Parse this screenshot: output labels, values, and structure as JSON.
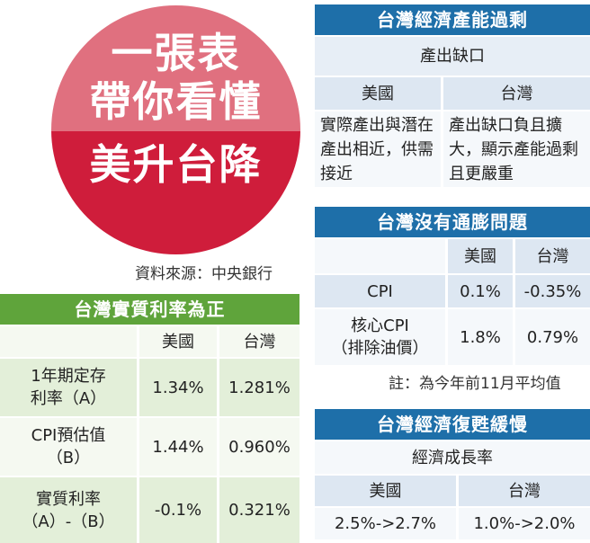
{
  "badge": {
    "line1": "一張表",
    "line2": "帶你看懂",
    "line3": "美升台降"
  },
  "source": "資料來源：中央銀行",
  "capacity": {
    "title": "台灣經濟產能過剩",
    "subtitle": "產出缺口",
    "col_us": "美國",
    "col_tw": "台灣",
    "us_text": "實際產出與潛在產出相近，供需接近",
    "tw_text": "產出缺口負且擴大，顯示產能過剩且更嚴重"
  },
  "inflation": {
    "title": "台灣沒有通膨問題",
    "col_us": "美國",
    "col_tw": "台灣",
    "rows": [
      {
        "label": "CPI",
        "us": "0.1%",
        "tw": "-0.35%"
      },
      {
        "label": "核心CPI\n（排除油價）",
        "us": "1.8%",
        "tw": "0.79%"
      }
    ],
    "note": "註：為今年前11月平均值"
  },
  "growth": {
    "title": "台灣經濟復甦緩慢",
    "subtitle": "經濟成長率",
    "col_us": "美國",
    "col_tw": "台灣",
    "us": "2.5%->2.7%",
    "tw": "1.0%->2.0%"
  },
  "real_rate": {
    "title": "台灣實質利率為正",
    "col_us": "美國",
    "col_tw": "台灣",
    "rows": [
      {
        "label": "1年期定存\n利率（A）",
        "us": "1.34%",
        "tw": "1.281%"
      },
      {
        "label": "CPI預估值\n（B）",
        "us": "1.44%",
        "tw": "0.960%"
      },
      {
        "label": "實質利率\n（A）-（B）",
        "us": "-0.1%",
        "tw": "0.321%"
      }
    ]
  }
}
